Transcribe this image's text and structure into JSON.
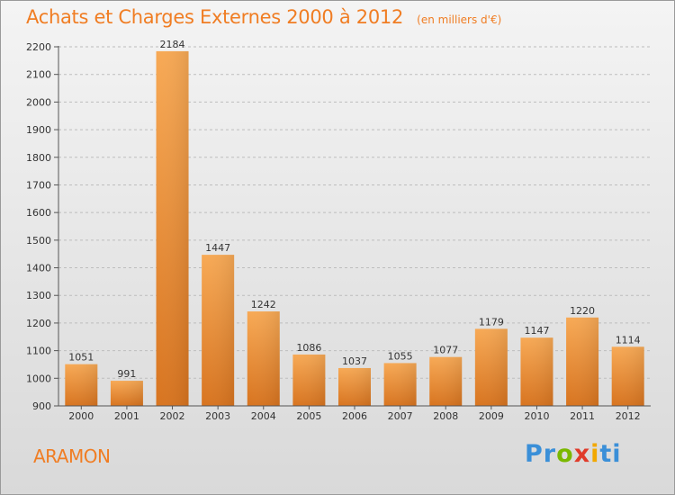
{
  "header": {
    "title": "Achats et Charges Externes 2000 à 2012",
    "unit": "(en milliers d'€)"
  },
  "footer": {
    "commune": "ARAMON",
    "logo": "Proxiti",
    "logo_letters": [
      "P",
      "r",
      "o",
      "x",
      "i",
      "ti"
    ]
  },
  "colors": {
    "accent": "#f07d23",
    "bar_light": "#f7a955",
    "bar_dark": "#d8741f"
  },
  "chart_data": {
    "type": "bar",
    "categories": [
      "2000",
      "2001",
      "2002",
      "2003",
      "2004",
      "2005",
      "2006",
      "2007",
      "2008",
      "2009",
      "2010",
      "2011",
      "2012"
    ],
    "values": [
      1051,
      991,
      2184,
      1447,
      1242,
      1086,
      1037,
      1055,
      1077,
      1179,
      1147,
      1220,
      1114
    ],
    "data_labels": [
      "1051",
      "991",
      "2184",
      "1447",
      "1242",
      "1086",
      "1037",
      "1055",
      "1077",
      "1179",
      "1147",
      "1220",
      "1114"
    ],
    "ylim": [
      900,
      2200
    ],
    "yticks": [
      900,
      1000,
      1100,
      1200,
      1300,
      1400,
      1500,
      1600,
      1700,
      1800,
      1900,
      2000,
      2100,
      2200
    ],
    "grid": "horizontal dashed",
    "xlabel": "",
    "ylabel": ""
  }
}
